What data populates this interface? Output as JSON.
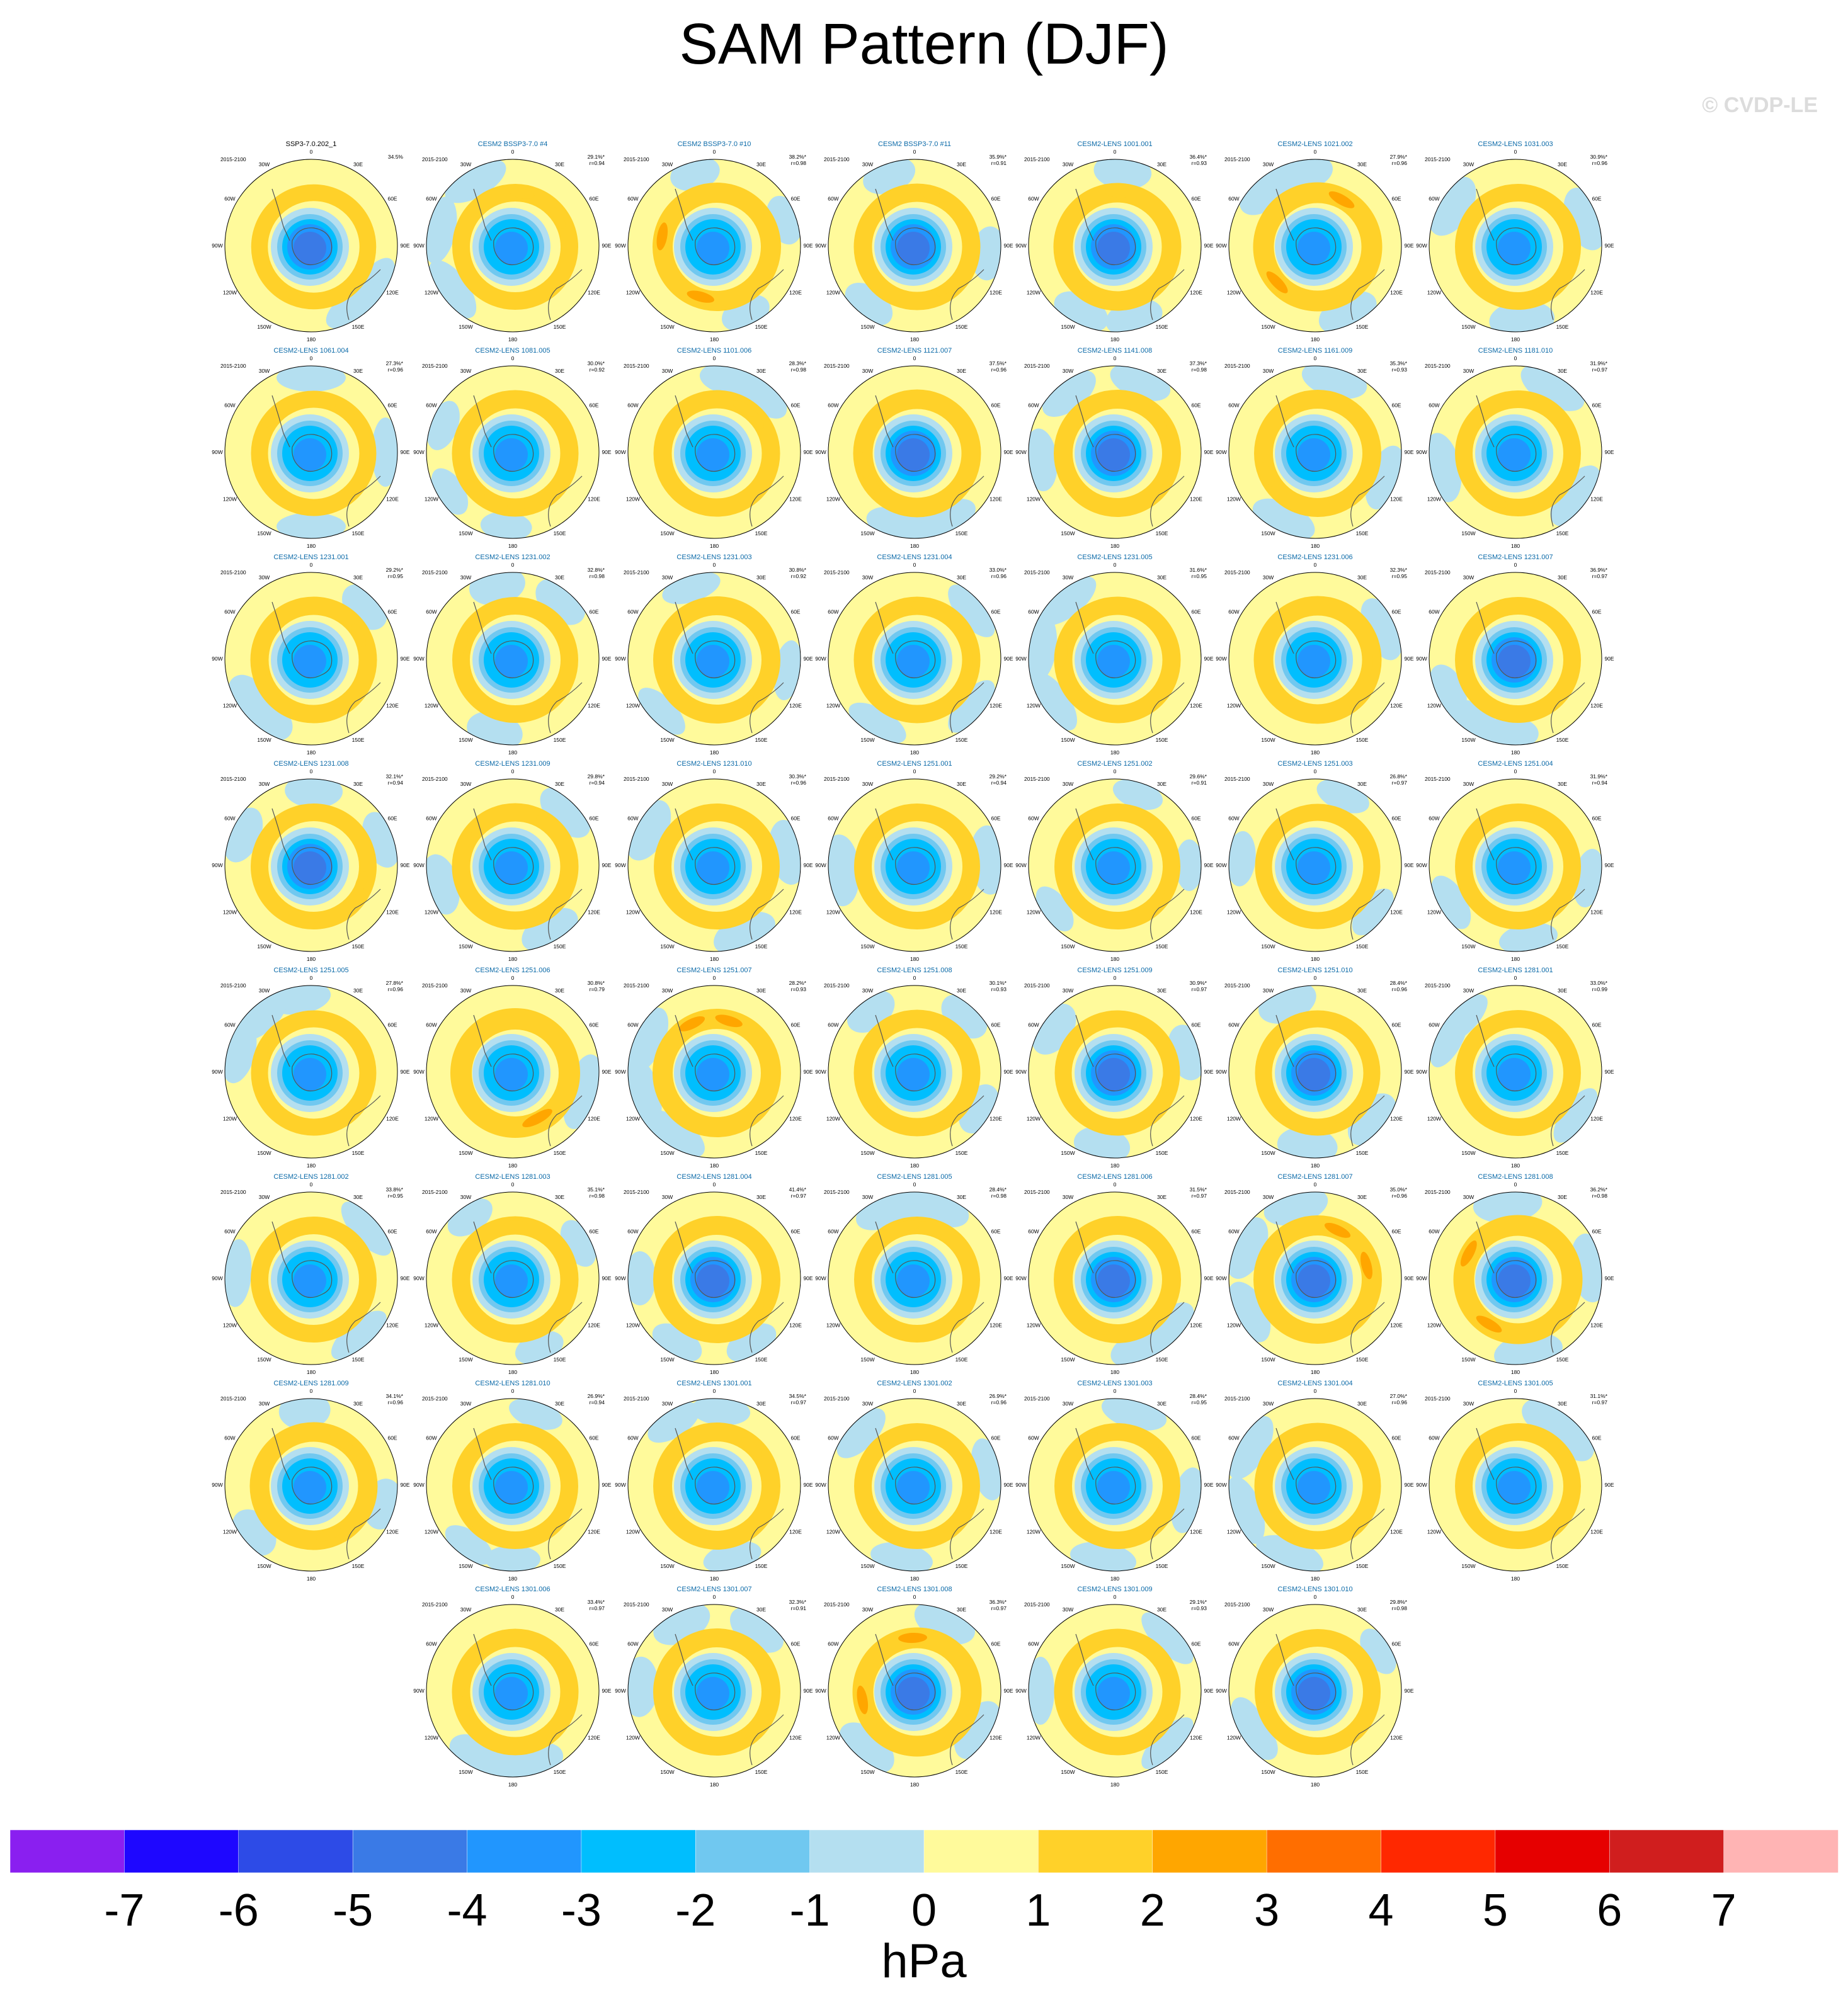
{
  "title": "SAM Pattern (DJF)",
  "copyright": "© CVDP-LE",
  "colors": {
    "levels": [
      "#8a1ff0",
      "#1e07ff",
      "#2d4be7",
      "#3a7ae6",
      "#2196fe",
      "#00befe",
      "#70c8f0",
      "#b4dff0",
      "#fffa9b",
      "#ffd129",
      "#ffa600",
      "#ff6e00",
      "#ff2800",
      "#e60000",
      "#d01e1e",
      "#ffb4b4"
    ],
    "land": "#555555",
    "border": "#000000"
  },
  "chart_data": {
    "type": "heatmap",
    "projection": "south polar stereographic",
    "units": "hPa",
    "colorbar": {
      "label": "hPa",
      "ticks": [
        "-7",
        "-6",
        "-5",
        "-4",
        "-3",
        "-2",
        "-1",
        "0",
        "1",
        "2",
        "3",
        "4",
        "5",
        "6",
        "7"
      ],
      "bins": 16
    },
    "map_labels": {
      "lon": [
        "0",
        "30E",
        "60E",
        "90E",
        "120E",
        "150E",
        "180",
        "150W",
        "120W",
        "90W",
        "60W",
        "30W"
      ]
    },
    "panels": [
      {
        "name": "SSP3-7.0.202_1",
        "period": "2015-2100",
        "pct": "34.5%",
        "r": "",
        "obs": true,
        "ring": 0.85,
        "center": -4
      },
      {
        "name": "CESM2 BSSP3-7.0 #4",
        "period": "2015-2100",
        "pct": "29.1%*",
        "r": "r=0.94",
        "ring": 1.0,
        "center": -3
      },
      {
        "name": "CESM2 BSSP3-7.0 #10",
        "period": "2015-2100",
        "pct": "38.2%*",
        "r": "r=0.98",
        "ring": 1.4,
        "center": -3
      },
      {
        "name": "CESM2 BSSP3-7.0 #11",
        "period": "2015-2100",
        "pct": "35.9%*",
        "r": "r=0.91",
        "ring": 1.1,
        "center": -4
      },
      {
        "name": "CESM2-LENS 1001.001",
        "period": "2015-2100",
        "pct": "36.4%*",
        "r": "r=0.93",
        "ring": 1.3,
        "center": -4
      },
      {
        "name": "CESM2-LENS 1021.002",
        "period": "2015-2100",
        "pct": "27.9%*",
        "r": "r=0.96",
        "ring": 1.5,
        "center": -3
      },
      {
        "name": "CESM2-LENS 1031.003",
        "period": "2015-2100",
        "pct": "30.9%*",
        "r": "r=0.96",
        "ring": 1.0,
        "center": -3
      },
      {
        "name": "CESM2-LENS 1061.004",
        "period": "2015-2100",
        "pct": "27.3%*",
        "r": "r=0.96",
        "ring": 0.9,
        "center": -3
      },
      {
        "name": "CESM2-LENS 1081.005",
        "period": "2015-2100",
        "pct": "30.0%*",
        "r": "r=0.92",
        "ring": 1.1,
        "center": -3
      },
      {
        "name": "CESM2-LENS 1101.006",
        "period": "2015-2100",
        "pct": "28.3%*",
        "r": "r=0.98",
        "ring": 1.1,
        "center": -3
      },
      {
        "name": "CESM2-LENS 1121.007",
        "period": "2015-2100",
        "pct": "37.5%*",
        "r": "r=0.96",
        "ring": 1.3,
        "center": -4
      },
      {
        "name": "CESM2-LENS 1141.008",
        "period": "2015-2100",
        "pct": "37.3%*",
        "r": "r=0.98",
        "ring": 1.2,
        "center": -4
      },
      {
        "name": "CESM2-LENS 1161.009",
        "period": "2015-2100",
        "pct": "35.3%*",
        "r": "r=0.93",
        "ring": 1.2,
        "center": -3
      },
      {
        "name": "CESM2-LENS 1181.010",
        "period": "2015-2100",
        "pct": "31.9%*",
        "r": "r=0.97",
        "ring": 1.0,
        "center": -3
      },
      {
        "name": "CESM2-LENS 1231.001",
        "period": "2015-2100",
        "pct": "29.2%*",
        "r": "r=0.95",
        "ring": 1.1,
        "center": -3
      },
      {
        "name": "CESM2-LENS 1231.002",
        "period": "2015-2100",
        "pct": "32.8%*",
        "r": "r=0.98",
        "ring": 1.0,
        "center": -3
      },
      {
        "name": "CESM2-LENS 1231.003",
        "period": "2015-2100",
        "pct": "30.8%*",
        "r": "r=0.92",
        "ring": 1.2,
        "center": -3
      },
      {
        "name": "CESM2-LENS 1231.004",
        "period": "2015-2100",
        "pct": "33.0%*",
        "r": "r=0.96",
        "ring": 1.1,
        "center": -3
      },
      {
        "name": "CESM2-LENS 1231.005",
        "period": "2015-2100",
        "pct": "31.6%*",
        "r": "r=0.95",
        "ring": 1.1,
        "center": -3
      },
      {
        "name": "CESM2-LENS 1231.006",
        "period": "2015-2100",
        "pct": "32.3%*",
        "r": "r=0.95",
        "ring": 1.3,
        "center": -3
      },
      {
        "name": "CESM2-LENS 1231.007",
        "period": "2015-2100",
        "pct": "36.9%*",
        "r": "r=0.97",
        "ring": 1.0,
        "center": -4
      },
      {
        "name": "CESM2-LENS 1231.008",
        "period": "2015-2100",
        "pct": "32.1%*",
        "r": "r=0.94",
        "ring": 1.0,
        "center": -4
      },
      {
        "name": "CESM2-LENS 1231.009",
        "period": "2015-2100",
        "pct": "29.8%*",
        "r": "r=0.94",
        "ring": 1.1,
        "center": -3
      },
      {
        "name": "CESM2-LENS 1231.010",
        "period": "2015-2100",
        "pct": "30.3%*",
        "r": "r=0.96",
        "ring": 1.0,
        "center": -3
      },
      {
        "name": "CESM2-LENS 1251.001",
        "period": "2015-2100",
        "pct": "29.2%*",
        "r": "r=0.94",
        "ring": 1.0,
        "center": -3
      },
      {
        "name": "CESM2-LENS 1251.002",
        "period": "2015-2100",
        "pct": "29.6%*",
        "r": "r=0.91",
        "ring": 1.0,
        "center": -3
      },
      {
        "name": "CESM2-LENS 1251.003",
        "period": "2015-2100",
        "pct": "26.8%*",
        "r": "r=0.97",
        "ring": 0.9,
        "center": -3
      },
      {
        "name": "CESM2-LENS 1251.004",
        "period": "2015-2100",
        "pct": "31.9%*",
        "r": "r=0.94",
        "ring": 1.0,
        "center": -3
      },
      {
        "name": "CESM2-LENS 1251.005",
        "period": "2015-2100",
        "pct": "27.8%*",
        "r": "r=0.96",
        "ring": 0.9,
        "center": -3
      },
      {
        "name": "CESM2-LENS 1251.006",
        "period": "2015-2100",
        "pct": "30.8%*",
        "r": "r=0.79",
        "ring": 1.6,
        "center": -3
      },
      {
        "name": "CESM2-LENS 1251.007",
        "period": "2015-2100",
        "pct": "28.2%*",
        "r": "r=0.93",
        "ring": 1.4,
        "center": -3
      },
      {
        "name": "CESM2-LENS 1251.008",
        "period": "2015-2100",
        "pct": "30.1%*",
        "r": "r=0.93",
        "ring": 1.1,
        "center": -3
      },
      {
        "name": "CESM2-LENS 1251.009",
        "period": "2015-2100",
        "pct": "30.9%*",
        "r": "r=0.97",
        "ring": 0.9,
        "center": -4
      },
      {
        "name": "CESM2-LENS 1251.010",
        "period": "2015-2100",
        "pct": "28.4%*",
        "r": "r=0.96",
        "ring": 0.9,
        "center": -4
      },
      {
        "name": "CESM2-LENS 1281.001",
        "period": "2015-2100",
        "pct": "33.0%*",
        "r": "r=0.99",
        "ring": 1.0,
        "center": -3
      },
      {
        "name": "CESM2-LENS 1281.002",
        "period": "2015-2100",
        "pct": "33.8%*",
        "r": "r=0.95",
        "ring": 1.0,
        "center": -3
      },
      {
        "name": "CESM2-LENS 1281.003",
        "period": "2015-2100",
        "pct": "35.1%*",
        "r": "r=0.98",
        "ring": 1.1,
        "center": -3
      },
      {
        "name": "CESM2-LENS 1281.004",
        "period": "2015-2100",
        "pct": "41.4%*",
        "r": "r=0.97",
        "ring": 1.2,
        "center": -4
      },
      {
        "name": "CESM2-LENS 1281.005",
        "period": "2015-2100",
        "pct": "28.4%*",
        "r": "r=0.98",
        "ring": 1.0,
        "center": -3
      },
      {
        "name": "CESM2-LENS 1281.006",
        "period": "2015-2100",
        "pct": "31.5%*",
        "r": "r=0.97",
        "ring": 1.2,
        "center": -4
      },
      {
        "name": "CESM2-LENS 1281.007",
        "period": "2015-2100",
        "pct": "35.0%*",
        "r": "r=0.96",
        "ring": 1.4,
        "center": -4
      },
      {
        "name": "CESM2-LENS 1281.008",
        "period": "2015-2100",
        "pct": "36.2%*",
        "r": "r=0.98",
        "ring": 1.5,
        "center": -4
      },
      {
        "name": "CESM2-LENS 1281.009",
        "period": "2015-2100",
        "pct": "34.1%*",
        "r": "r=0.96",
        "ring": 1.3,
        "center": -3
      },
      {
        "name": "CESM2-LENS 1281.010",
        "period": "2015-2100",
        "pct": "26.9%*",
        "r": "r=0.94",
        "ring": 1.0,
        "center": -3
      },
      {
        "name": "CESM2-LENS 1301.001",
        "period": "2015-2100",
        "pct": "34.5%*",
        "r": "r=0.97",
        "ring": 1.2,
        "center": -3
      },
      {
        "name": "CESM2-LENS 1301.002",
        "period": "2015-2100",
        "pct": "26.9%*",
        "r": "r=0.96",
        "ring": 1.0,
        "center": -3
      },
      {
        "name": "CESM2-LENS 1301.003",
        "period": "2015-2100",
        "pct": "28.4%*",
        "r": "r=0.95",
        "ring": 1.0,
        "center": -3
      },
      {
        "name": "CESM2-LENS 1301.004",
        "period": "2015-2100",
        "pct": "27.0%*",
        "r": "r=0.96",
        "ring": 1.1,
        "center": -3
      },
      {
        "name": "CESM2-LENS 1301.005",
        "period": "2015-2100",
        "pct": "31.1%*",
        "r": "r=0.97",
        "ring": 1.0,
        "center": -3
      },
      {
        "name": "CESM2-LENS 1301.006",
        "period": "2015-2100",
        "pct": "33.4%*",
        "r": "r=0.97",
        "ring": 1.1,
        "center": -3
      },
      {
        "name": "CESM2-LENS 1301.007",
        "period": "2015-2100",
        "pct": "32.3%*",
        "r": "r=0.91",
        "ring": 1.2,
        "center": -3
      },
      {
        "name": "CESM2-LENS 1301.008",
        "period": "2015-2100",
        "pct": "36.3%*",
        "r": "r=0.97",
        "ring": 1.5,
        "center": -4
      },
      {
        "name": "CESM2-LENS 1301.009",
        "period": "2015-2100",
        "pct": "29.1%*",
        "r": "r=0.93",
        "ring": 1.1,
        "center": -3
      },
      {
        "name": "CESM2-LENS 1301.010",
        "period": "2015-2100",
        "pct": "29.8%*",
        "r": "r=0.98",
        "ring": 1.0,
        "center": -4
      }
    ]
  }
}
